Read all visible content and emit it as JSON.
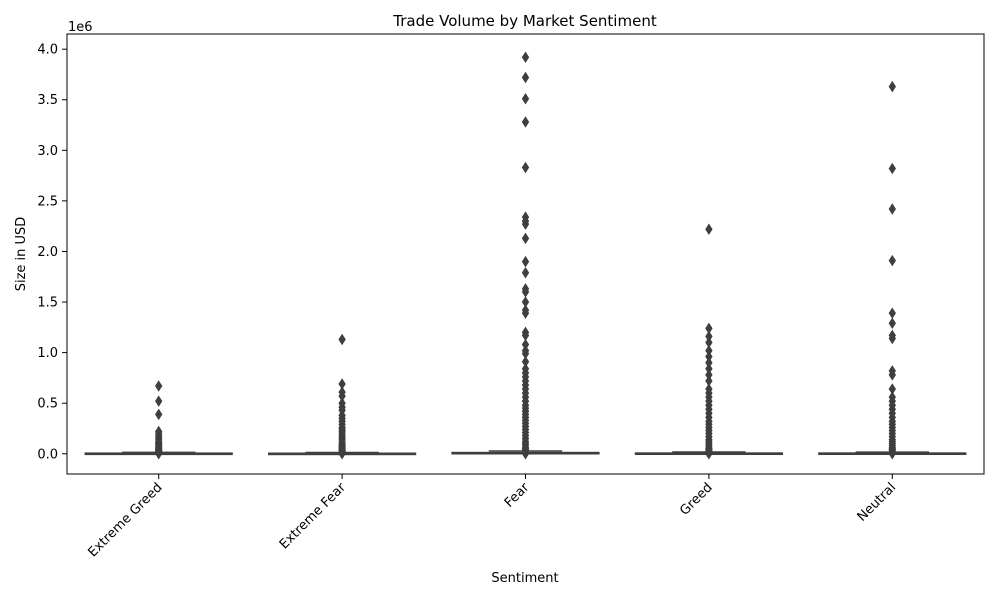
{
  "chart_data": {
    "type": "box",
    "title": "Trade Volume by Market Sentiment",
    "xlabel": "Sentiment",
    "ylabel": "Size in USD",
    "y_offset_label": "1e6",
    "ylim": [
      -0.2,
      4.15
    ],
    "yticks": [
      0.0,
      0.5,
      1.0,
      1.5,
      2.0,
      2.5,
      3.0,
      3.5,
      4.0
    ],
    "ytick_labels": [
      "0.0",
      "0.5",
      "1.0",
      "1.5",
      "2.0",
      "2.5",
      "3.0",
      "3.5",
      "4.0"
    ],
    "categories": [
      "Extreme Greed",
      "Extreme Fear",
      "Fear",
      "Greed",
      "Neutral"
    ],
    "grid": false,
    "colors": {
      "box": "#4878d0",
      "line": "#3f3f3f",
      "outlier": "#3f3f3f"
    },
    "boxes": [
      {
        "category": "Extreme Greed",
        "q1": 0.0003,
        "median": 0.0006,
        "q3": 0.006,
        "whisker_low": 0.0,
        "whisker_high": 0.014,
        "outliers": [
          0.67,
          0.52,
          0.39,
          0.22,
          0.2,
          0.18,
          0.16,
          0.14,
          0.12,
          0.11,
          0.1,
          0.09,
          0.08,
          0.07,
          0.06,
          0.05,
          0.045,
          0.04,
          0.035,
          0.03,
          0.025,
          0.02,
          0.018,
          0.016,
          0.0
        ]
      },
      {
        "category": "Extreme Fear",
        "q1": 0.0003,
        "median": 0.0006,
        "q3": 0.005,
        "whisker_low": 0.0,
        "whisker_high": 0.012,
        "outliers": [
          1.13,
          0.69,
          0.61,
          0.57,
          0.5,
          0.46,
          0.43,
          0.38,
          0.35,
          0.32,
          0.29,
          0.26,
          0.24,
          0.22,
          0.2,
          0.18,
          0.16,
          0.14,
          0.12,
          0.1,
          0.09,
          0.08,
          0.07,
          0.06,
          0.05,
          0.04,
          0.035,
          0.03,
          0.025,
          0.02,
          0.016,
          0.0
        ]
      },
      {
        "category": "Fear",
        "q1": 0.0008,
        "median": 0.003,
        "q3": 0.012,
        "whisker_low": 0.0,
        "whisker_high": 0.028,
        "outliers": [
          3.92,
          3.72,
          3.51,
          3.28,
          2.83,
          2.34,
          2.3,
          2.27,
          2.13,
          1.9,
          1.79,
          1.63,
          1.6,
          1.5,
          1.42,
          1.39,
          1.2,
          1.17,
          1.08,
          1.02,
          0.99,
          0.91,
          0.84,
          0.8,
          0.76,
          0.72,
          0.68,
          0.64,
          0.6,
          0.56,
          0.52,
          0.48,
          0.45,
          0.42,
          0.39,
          0.36,
          0.33,
          0.3,
          0.27,
          0.24,
          0.21,
          0.18,
          0.15,
          0.12,
          0.1,
          0.08,
          0.06,
          0.05,
          0.04,
          0.03,
          0.0
        ]
      },
      {
        "category": "Greed",
        "q1": 0.0004,
        "median": 0.001,
        "q3": 0.007,
        "whisker_low": 0.0,
        "whisker_high": 0.017,
        "outliers": [
          2.22,
          1.24,
          1.16,
          1.1,
          1.02,
          0.96,
          0.9,
          0.84,
          0.78,
          0.72,
          0.64,
          0.6,
          0.56,
          0.52,
          0.48,
          0.44,
          0.4,
          0.36,
          0.32,
          0.29,
          0.26,
          0.23,
          0.2,
          0.17,
          0.14,
          0.12,
          0.1,
          0.08,
          0.06,
          0.05,
          0.04,
          0.03,
          0.02,
          0.0
        ]
      },
      {
        "category": "Neutral",
        "q1": 0.0004,
        "median": 0.001,
        "q3": 0.007,
        "whisker_low": 0.0,
        "whisker_high": 0.016,
        "outliers": [
          3.63,
          2.82,
          2.42,
          1.91,
          1.39,
          1.29,
          1.17,
          1.14,
          0.82,
          0.78,
          0.64,
          0.56,
          0.52,
          0.48,
          0.44,
          0.4,
          0.36,
          0.32,
          0.29,
          0.26,
          0.23,
          0.2,
          0.17,
          0.14,
          0.12,
          0.1,
          0.08,
          0.06,
          0.05,
          0.04,
          0.03,
          0.02,
          0.0
        ]
      }
    ]
  }
}
